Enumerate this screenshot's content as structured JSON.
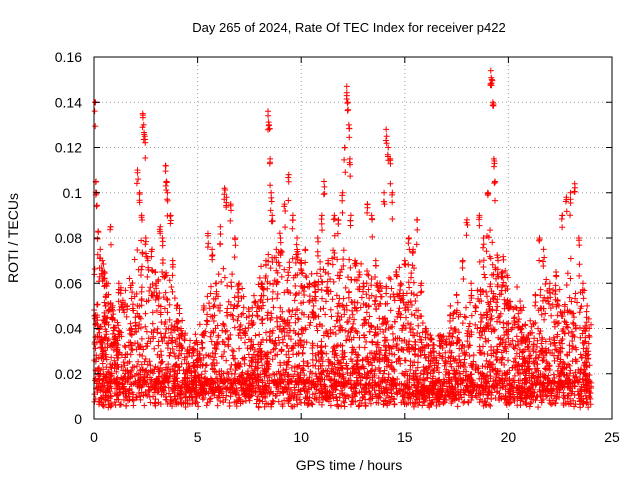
{
  "chart_data": {
    "type": "scatter",
    "title": "Day 265 of 2024, Rate Of TEC Index for receiver p422",
    "xlabel": "GPS time / hours",
    "ylabel": "ROTI / TECUs",
    "xlim": [
      0,
      25
    ],
    "ylim": [
      0,
      0.16
    ],
    "xticks": [
      0,
      5,
      10,
      15,
      20,
      25
    ],
    "yticks": [
      0,
      0.02,
      0.04,
      0.06,
      0.08,
      0.1,
      0.12,
      0.14,
      0.16
    ],
    "xtick_labels": [
      "0",
      "5",
      "10",
      "15",
      "20",
      "25"
    ],
    "ytick_labels": [
      "0",
      "0.02",
      "0.04",
      "0.06",
      "0.08",
      "0.1",
      "0.12",
      "0.14",
      "0.16"
    ],
    "grid": true,
    "marker": "plus",
    "color": "#ff0000",
    "series": [
      {
        "name": "ROTI",
        "points": [
          [
            0.05,
            0.14
          ],
          [
            0.1,
            0.105
          ],
          [
            0.12,
            0.1
          ],
          [
            0.2,
            0.083
          ],
          [
            0.3,
            0.075
          ],
          [
            0.4,
            0.07
          ],
          [
            0.5,
            0.065
          ],
          [
            0.6,
            0.06
          ],
          [
            0.15,
            0.045
          ],
          [
            0.25,
            0.04
          ],
          [
            0.35,
            0.035
          ],
          [
            0.45,
            0.03
          ],
          [
            0.55,
            0.05
          ],
          [
            0.7,
            0.055
          ],
          [
            0.8,
            0.085
          ],
          [
            0.9,
            0.05
          ],
          [
            1.2,
            0.06
          ],
          [
            1.3,
            0.058
          ],
          [
            1.6,
            0.05
          ],
          [
            1.8,
            0.04
          ],
          [
            2.0,
            0.045
          ],
          [
            2.1,
            0.11
          ],
          [
            2.2,
            0.1
          ],
          [
            2.3,
            0.09
          ],
          [
            2.35,
            0.135
          ],
          [
            2.4,
            0.13
          ],
          [
            2.45,
            0.125
          ],
          [
            2.5,
            0.08
          ],
          [
            2.6,
            0.07
          ],
          [
            2.8,
            0.075
          ],
          [
            3.0,
            0.06
          ],
          [
            3.2,
            0.085
          ],
          [
            3.3,
            0.08
          ],
          [
            3.45,
            0.112
          ],
          [
            3.5,
            0.105
          ],
          [
            3.55,
            0.1
          ],
          [
            3.7,
            0.09
          ],
          [
            3.8,
            0.07
          ],
          [
            4.0,
            0.05
          ],
          [
            4.2,
            0.04
          ],
          [
            4.5,
            0.03
          ],
          [
            4.8,
            0.025
          ],
          [
            5.0,
            0.03
          ],
          [
            5.3,
            0.05
          ],
          [
            5.5,
            0.082
          ],
          [
            5.7,
            0.075
          ],
          [
            5.9,
            0.06
          ],
          [
            6.1,
            0.085
          ],
          [
            6.3,
            0.102
          ],
          [
            6.4,
            0.098
          ],
          [
            6.6,
            0.095
          ],
          [
            6.8,
            0.08
          ],
          [
            7.0,
            0.06
          ],
          [
            7.3,
            0.04
          ],
          [
            7.6,
            0.035
          ],
          [
            7.9,
            0.05
          ],
          [
            8.1,
            0.06
          ],
          [
            8.3,
            0.07
          ],
          [
            8.4,
            0.136
          ],
          [
            8.45,
            0.13
          ],
          [
            8.5,
            0.115
          ],
          [
            8.55,
            0.1
          ],
          [
            8.6,
            0.09
          ],
          [
            8.8,
            0.075
          ],
          [
            9.0,
            0.08
          ],
          [
            9.2,
            0.095
          ],
          [
            9.4,
            0.108
          ],
          [
            9.6,
            0.09
          ],
          [
            9.8,
            0.08
          ],
          [
            10.0,
            0.07
          ],
          [
            10.2,
            0.075
          ],
          [
            10.4,
            0.06
          ],
          [
            10.6,
            0.05
          ],
          [
            10.8,
            0.08
          ],
          [
            11.0,
            0.09
          ],
          [
            11.1,
            0.105
          ],
          [
            11.3,
            0.07
          ],
          [
            11.6,
            0.09
          ],
          [
            11.8,
            0.088
          ],
          [
            12.0,
            0.1
          ],
          [
            12.1,
            0.12
          ],
          [
            12.2,
            0.147
          ],
          [
            12.25,
            0.14
          ],
          [
            12.3,
            0.13
          ],
          [
            12.35,
            0.115
          ],
          [
            12.4,
            0.09
          ],
          [
            12.6,
            0.07
          ],
          [
            12.8,
            0.065
          ],
          [
            13.0,
            0.06
          ],
          [
            13.2,
            0.095
          ],
          [
            13.4,
            0.09
          ],
          [
            13.6,
            0.07
          ],
          [
            13.8,
            0.06
          ],
          [
            14.0,
            0.1
          ],
          [
            14.1,
            0.128
          ],
          [
            14.2,
            0.12
          ],
          [
            14.3,
            0.115
          ],
          [
            14.4,
            0.1
          ],
          [
            14.6,
            0.065
          ],
          [
            14.8,
            0.06
          ],
          [
            15.0,
            0.07
          ],
          [
            15.2,
            0.08
          ],
          [
            15.4,
            0.075
          ],
          [
            15.6,
            0.088
          ],
          [
            15.8,
            0.06
          ],
          [
            16.0,
            0.04
          ],
          [
            16.4,
            0.03
          ],
          [
            16.8,
            0.035
          ],
          [
            17.2,
            0.05
          ],
          [
            17.5,
            0.055
          ],
          [
            17.8,
            0.07
          ],
          [
            18.0,
            0.088
          ],
          [
            18.2,
            0.06
          ],
          [
            18.4,
            0.05
          ],
          [
            18.6,
            0.09
          ],
          [
            18.8,
            0.08
          ],
          [
            19.0,
            0.1
          ],
          [
            19.15,
            0.154
          ],
          [
            19.2,
            0.15
          ],
          [
            19.25,
            0.14
          ],
          [
            19.3,
            0.115
          ],
          [
            19.35,
            0.105
          ],
          [
            19.5,
            0.07
          ],
          [
            19.7,
            0.065
          ],
          [
            20.0,
            0.05
          ],
          [
            20.3,
            0.045
          ],
          [
            20.6,
            0.04
          ],
          [
            21.0,
            0.03
          ],
          [
            21.3,
            0.055
          ],
          [
            21.5,
            0.08
          ],
          [
            21.7,
            0.075
          ],
          [
            22.0,
            0.06
          ],
          [
            22.3,
            0.065
          ],
          [
            22.6,
            0.09
          ],
          [
            22.8,
            0.098
          ],
          [
            23.0,
            0.1
          ],
          [
            23.2,
            0.104
          ],
          [
            23.4,
            0.08
          ],
          [
            23.6,
            0.06
          ],
          [
            23.8,
            0.05
          ],
          [
            23.9,
            0.04
          ]
        ],
        "density": [
          [
            0,
            0.06
          ],
          [
            0.5,
            0.055
          ],
          [
            1,
            0.035
          ],
          [
            1.5,
            0.045
          ],
          [
            2,
            0.06
          ],
          [
            2.5,
            0.065
          ],
          [
            3,
            0.055
          ],
          [
            3.5,
            0.06
          ],
          [
            4,
            0.04
          ],
          [
            4.5,
            0.025
          ],
          [
            5,
            0.025
          ],
          [
            5.5,
            0.04
          ],
          [
            6,
            0.05
          ],
          [
            6.5,
            0.06
          ],
          [
            7,
            0.045
          ],
          [
            7.5,
            0.035
          ],
          [
            8,
            0.05
          ],
          [
            8.5,
            0.065
          ],
          [
            9,
            0.07
          ],
          [
            9.5,
            0.065
          ],
          [
            10,
            0.06
          ],
          [
            10.5,
            0.055
          ],
          [
            11,
            0.06
          ],
          [
            11.5,
            0.06
          ],
          [
            12,
            0.06
          ],
          [
            12.5,
            0.06
          ],
          [
            13,
            0.055
          ],
          [
            13.5,
            0.05
          ],
          [
            14,
            0.05
          ],
          [
            14.5,
            0.055
          ],
          [
            15,
            0.06
          ],
          [
            15.5,
            0.05
          ],
          [
            16,
            0.03
          ],
          [
            16.5,
            0.025
          ],
          [
            17,
            0.03
          ],
          [
            17.5,
            0.035
          ],
          [
            18,
            0.04
          ],
          [
            18.5,
            0.06
          ],
          [
            19,
            0.07
          ],
          [
            19.5,
            0.065
          ],
          [
            20,
            0.05
          ],
          [
            20.5,
            0.04
          ],
          [
            21,
            0.03
          ],
          [
            21.5,
            0.045
          ],
          [
            22,
            0.05
          ],
          [
            22.5,
            0.05
          ],
          [
            23,
            0.055
          ],
          [
            23.5,
            0.045
          ],
          [
            24,
            0.03
          ]
        ]
      }
    ]
  }
}
